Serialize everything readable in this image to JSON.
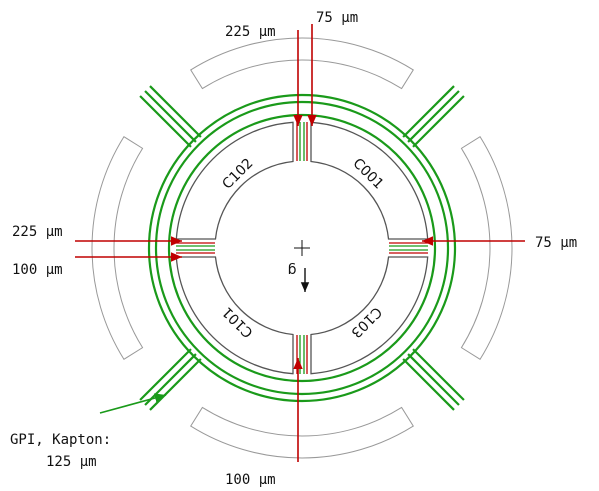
{
  "labels": {
    "top_left": "225 μm",
    "top_right": "75 μm",
    "left_top": "225 μm",
    "left_bottom": "100 μm",
    "right": "75 μm",
    "bottom": "100 μm",
    "gpi_line1": "GPI, Kapton:",
    "gpi_line2": "125 μm"
  },
  "electrodes": {
    "top_left": "C102",
    "top_right": "C001",
    "bottom_left": "C101",
    "bottom_right": "C103"
  },
  "gravity": "g"
}
